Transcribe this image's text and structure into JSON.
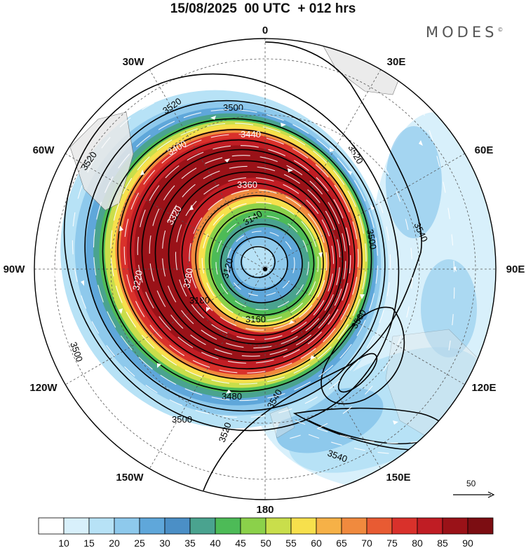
{
  "header": {
    "title": "15/08/2025  00 UTC  + 012 hrs",
    "brand": "MODES"
  },
  "map": {
    "projection": "south-polar-stereographic",
    "longitude_labels": [
      "0",
      "30E",
      "60E",
      "90E",
      "120E",
      "150E",
      "180",
      "150W",
      "120W",
      "90W",
      "60W",
      "30W"
    ],
    "height_contour_labels": [
      "3520",
      "3500",
      "3440",
      "3400",
      "3360",
      "3320",
      "3300",
      "3280",
      "3240",
      "3220",
      "3180",
      "3160",
      "3140",
      "3120",
      "3480",
      "3540",
      "3560"
    ],
    "shading_variable_colors": {
      "land": "#e8e8e8",
      "ocean": "#ffffff"
    }
  },
  "reference_vector": {
    "label": "50"
  },
  "colorbar": {
    "labels": [
      "10",
      "15",
      "20",
      "25",
      "30",
      "35",
      "40",
      "45",
      "50",
      "55",
      "60",
      "65",
      "70",
      "75",
      "80",
      "85",
      "90"
    ],
    "colors": [
      "#ffffff",
      "#d8f0fb",
      "#b7e2f6",
      "#8ec9ec",
      "#5fa7da",
      "#4b8fc6",
      "#4aa38f",
      "#4dbb57",
      "#8bd14a",
      "#c9de4b",
      "#f7e04c",
      "#f6b147",
      "#f08a3e",
      "#e85b33",
      "#d9312b",
      "#c01d24",
      "#9a1218",
      "#7c0d12"
    ]
  }
}
